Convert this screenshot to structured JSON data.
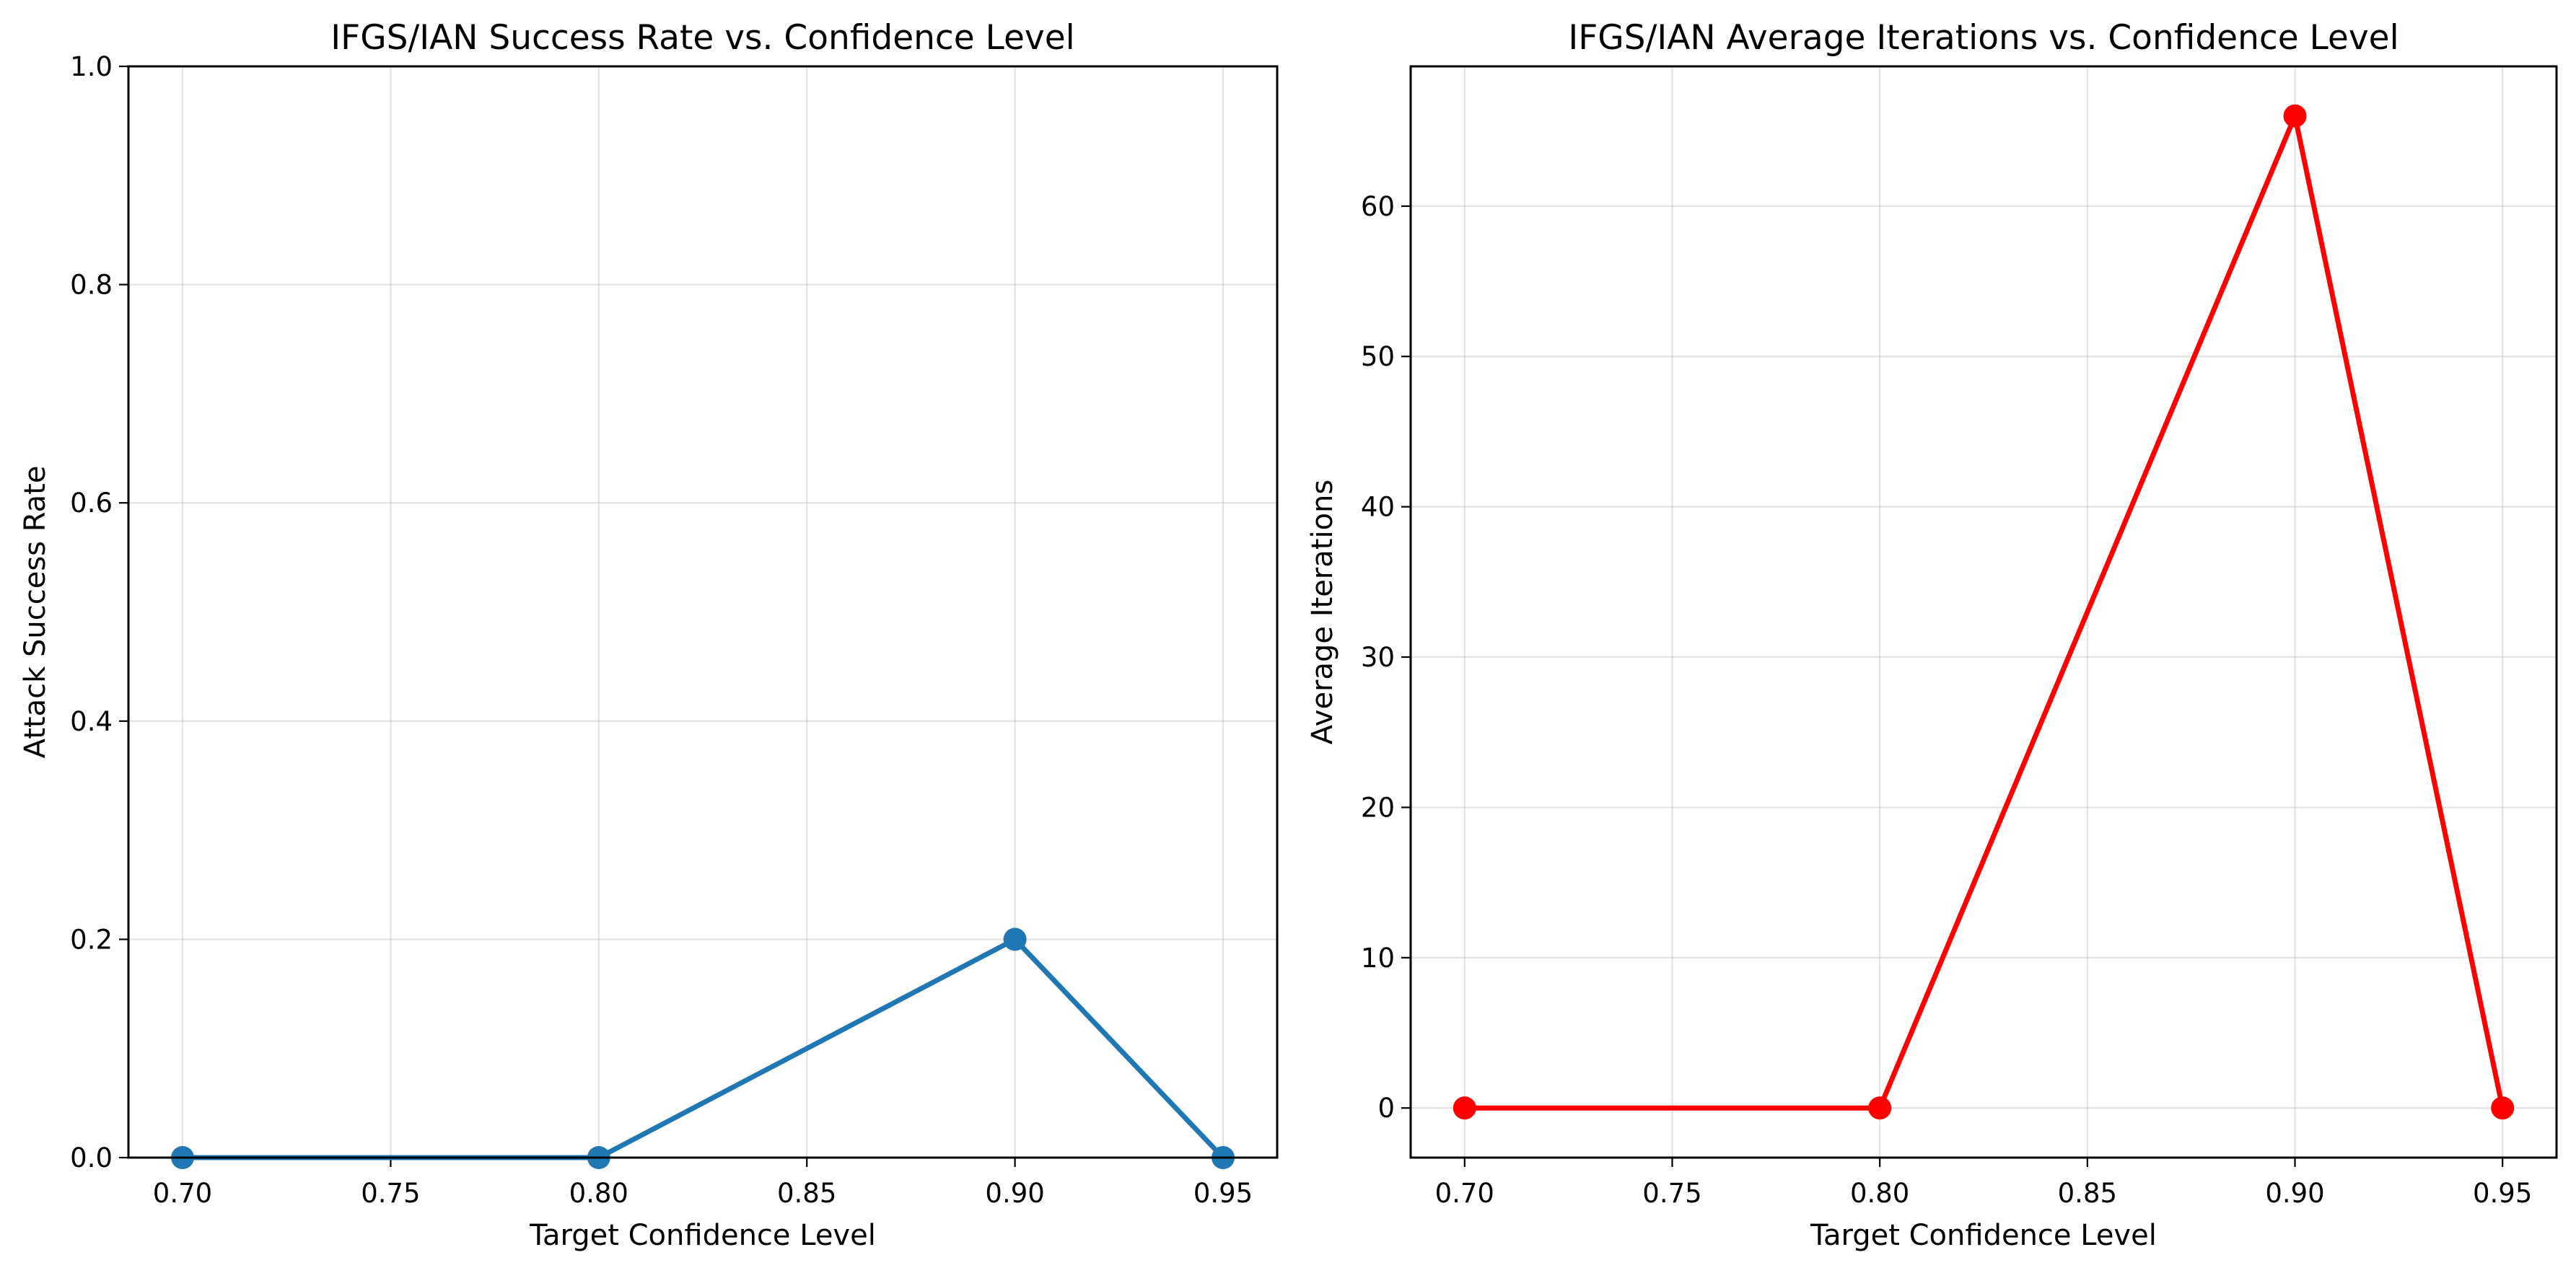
{
  "chart_data": [
    {
      "type": "line",
      "title": "IFGS/IAN Success Rate vs. Confidence Level",
      "xlabel": "Target Confidence Level",
      "ylabel": "Attack Success Rate",
      "xlim": [
        0.687,
        0.963
      ],
      "ylim": [
        0,
        1
      ],
      "xticks": [
        0.7,
        0.75,
        0.8,
        0.85,
        0.9,
        0.95
      ],
      "xtick_labels": [
        "0.70",
        "0.75",
        "0.80",
        "0.85",
        "0.90",
        "0.95"
      ],
      "yticks": [
        0.0,
        0.2,
        0.4,
        0.6,
        0.8,
        1.0
      ],
      "ytick_labels": [
        "0.0",
        "0.2",
        "0.4",
        "0.6",
        "0.8",
        "1.0"
      ],
      "grid": true,
      "color": "#1f77b4",
      "x": [
        0.7,
        0.8,
        0.9,
        0.95
      ],
      "y": [
        0.0,
        0.0,
        0.2,
        0.0
      ]
    },
    {
      "type": "line",
      "title": "IFGS/IAN Average Iterations vs. Confidence Level",
      "xlabel": "Target Confidence Level",
      "ylabel": "Average Iterations",
      "xlim": [
        0.687,
        0.963
      ],
      "ylim": [
        -3.3,
        69.3
      ],
      "xticks": [
        0.7,
        0.75,
        0.8,
        0.85,
        0.9,
        0.95
      ],
      "xtick_labels": [
        "0.70",
        "0.75",
        "0.80",
        "0.85",
        "0.90",
        "0.95"
      ],
      "yticks": [
        0,
        10,
        20,
        30,
        40,
        50,
        60
      ],
      "ytick_labels": [
        "0",
        "10",
        "20",
        "30",
        "40",
        "50",
        "60"
      ],
      "grid": true,
      "color": "#ff0000",
      "x": [
        0.7,
        0.8,
        0.9,
        0.95
      ],
      "y": [
        0,
        0,
        66,
        0
      ]
    }
  ]
}
